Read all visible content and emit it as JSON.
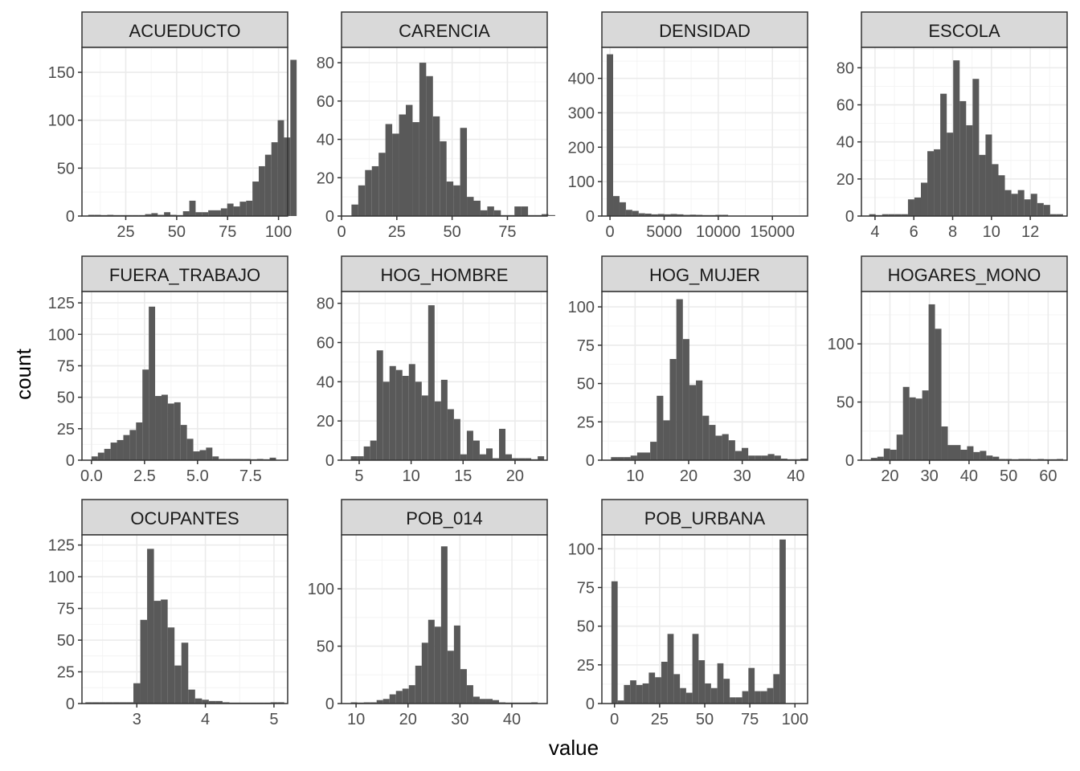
{
  "chart_data": {
    "type": "bar",
    "xlabel": "value",
    "ylabel": "count",
    "grid": true,
    "colors": {
      "bar": "#595959",
      "strip": "#d9d9d9",
      "grid_major": "#ebebeb",
      "grid_minor": "#f4f4f4",
      "border": "#333333"
    },
    "panels": [
      {
        "name": "ACUEDUCTO",
        "xlim": [
          3.5,
          104.5
        ],
        "ylim": [
          0,
          176
        ],
        "xticks": [
          25,
          50,
          75,
          100
        ],
        "yticks": [
          0,
          50,
          100,
          150
        ],
        "bin_start": 6.6,
        "bin_width": 3.1,
        "counts": [
          1,
          1,
          0,
          1,
          0,
          0,
          0,
          0,
          0,
          2,
          3,
          1,
          4,
          1,
          0,
          5,
          16,
          4,
          4,
          6,
          6,
          8,
          13,
          10,
          15,
          16,
          36,
          52,
          64,
          77,
          100,
          82,
          163
        ]
      },
      {
        "name": "CARENCIA",
        "xlim": [
          0,
          93
        ],
        "ylim": [
          0,
          88
        ],
        "xticks": [
          0,
          25,
          50,
          75
        ],
        "yticks": [
          0,
          20,
          40,
          60,
          80
        ],
        "bin_start": 4.5,
        "bin_width": 3.07,
        "counts": [
          6,
          16,
          24,
          26,
          33,
          48,
          43,
          53,
          58,
          49,
          80,
          73,
          52,
          39,
          18,
          16,
          46,
          10,
          8,
          3,
          5,
          3,
          0,
          0,
          5,
          5,
          0,
          0,
          1,
          0
        ]
      },
      {
        "name": "DENSIDAD",
        "xlim": [
          -750,
          18250
        ],
        "ylim": [
          0,
          490
        ],
        "xticks": [
          0,
          5000,
          10000,
          15000
        ],
        "yticks": [
          0,
          100,
          200,
          300,
          400
        ],
        "bin_start": -300,
        "bin_width": 590,
        "counts": [
          470,
          58,
          40,
          18,
          15,
          8,
          7,
          5,
          6,
          5,
          6,
          5,
          3,
          4,
          1,
          0,
          0,
          1,
          1
        ]
      },
      {
        "name": "ESCOLA",
        "xlim": [
          3.3,
          13.9
        ],
        "ylim": [
          0,
          91
        ],
        "xticks": [
          4,
          6,
          8,
          10,
          12
        ],
        "yticks": [
          0,
          20,
          40,
          60,
          80
        ],
        "bin_start": 3.7,
        "bin_width": 0.333,
        "counts": [
          1,
          0,
          1,
          1,
          1,
          1,
          9,
          10,
          18,
          35,
          36,
          66,
          45,
          84,
          62,
          49,
          74,
          33,
          44,
          28,
          22,
          14,
          12,
          14,
          9,
          12,
          7,
          6,
          1,
          1
        ]
      },
      {
        "name": "FUERA_TRABAJO",
        "xlim": [
          -0.45,
          9.25
        ],
        "ylim": [
          0,
          134
        ],
        "xticks": [
          0.0,
          2.5,
          5.0,
          7.5
        ],
        "yticks": [
          0,
          25,
          50,
          75,
          100,
          125
        ],
        "bin_start": 0,
        "bin_width": 0.3,
        "counts": [
          3,
          6,
          9,
          14,
          16,
          20,
          24,
          30,
          72,
          122,
          51,
          52,
          45,
          46,
          28,
          17,
          7,
          8,
          10,
          3,
          1,
          1,
          1,
          1,
          1,
          0,
          1,
          0,
          2
        ]
      },
      {
        "name": "HOG_HOMBRE",
        "xlim": [
          3.3,
          23.1
        ],
        "ylim": [
          0,
          86
        ],
        "xticks": [
          5,
          10,
          15,
          20
        ],
        "yticks": [
          0,
          20,
          40,
          60,
          80
        ],
        "bin_start": 4.2,
        "bin_width": 0.62,
        "counts": [
          2,
          2,
          7,
          10,
          56,
          40,
          48,
          46,
          43,
          49,
          40,
          33,
          79,
          30,
          41,
          26,
          21,
          3,
          15,
          10,
          3,
          6,
          1,
          16,
          3,
          1,
          1,
          1,
          0,
          2
        ]
      },
      {
        "name": "HOG_MUJER",
        "xlim": [
          3.8,
          42.2
        ],
        "ylim": [
          0,
          110
        ],
        "xticks": [
          10,
          20,
          30,
          40
        ],
        "yticks": [
          0,
          25,
          50,
          75,
          100
        ],
        "bin_start": 5.5,
        "bin_width": 1.22,
        "counts": [
          2,
          2,
          2,
          3,
          5,
          5,
          12,
          42,
          26,
          66,
          105,
          79,
          49,
          52,
          29,
          23,
          16,
          17,
          13,
          6,
          8,
          3,
          3,
          3,
          4,
          3,
          1,
          0,
          0,
          1
        ]
      },
      {
        "name": "HOGARES_MONO",
        "xlim": [
          12.8,
          64.8
        ],
        "ylim": [
          0,
          145
        ],
        "xticks": [
          20,
          30,
          40,
          50,
          60
        ],
        "yticks": [
          0,
          50,
          100
        ],
        "bin_start": 15.2,
        "bin_width": 1.62,
        "counts": [
          2,
          3,
          10,
          9,
          22,
          63,
          54,
          53,
          60,
          134,
          113,
          29,
          13,
          13,
          9,
          12,
          7,
          8,
          4,
          3,
          1,
          1,
          0,
          1,
          1,
          0,
          1,
          0,
          0,
          1
        ]
      },
      {
        "name": "OCUPANTES",
        "xlim": [
          2.2,
          5.2
        ],
        "ylim": [
          0,
          133
        ],
        "xticks": [
          3,
          4,
          5
        ],
        "yticks": [
          0,
          25,
          50,
          75,
          100,
          125
        ],
        "bin_start": 2.25,
        "bin_width": 0.1,
        "counts": [
          1,
          1,
          1,
          1,
          1,
          1,
          1,
          16,
          66,
          122,
          81,
          82,
          60,
          30,
          48,
          11,
          4,
          3,
          2,
          2,
          1,
          0,
          0,
          0,
          0,
          0,
          0,
          1,
          1
        ]
      },
      {
        "name": "POB_014",
        "xlim": [
          7.2,
          46.8
        ],
        "ylim": [
          0,
          147
        ],
        "xticks": [
          10,
          20,
          30,
          40
        ],
        "yticks": [
          0,
          50,
          100
        ],
        "bin_start": 9,
        "bin_width": 1.24,
        "counts": [
          1,
          0,
          1,
          1,
          3,
          4,
          8,
          11,
          13,
          16,
          33,
          53,
          73,
          67,
          137,
          46,
          68,
          30,
          16,
          6,
          4,
          4,
          3,
          1,
          0,
          0,
          0,
          0,
          1
        ]
      },
      {
        "name": "POB_URBANA",
        "xlim": [
          -7,
          107
        ],
        "ylim": [
          0,
          109
        ],
        "xticks": [
          0,
          25,
          50,
          75,
          100
        ],
        "yticks": [
          0,
          25,
          50,
          75,
          100
        ],
        "bin_start": -1.7,
        "bin_width": 3.45,
        "counts": [
          79,
          2,
          12,
          15,
          12,
          13,
          20,
          17,
          27,
          45,
          19,
          10,
          7,
          45,
          28,
          13,
          10,
          26,
          16,
          4,
          4,
          8,
          23,
          8,
          8,
          10,
          19,
          106
        ]
      }
    ]
  }
}
